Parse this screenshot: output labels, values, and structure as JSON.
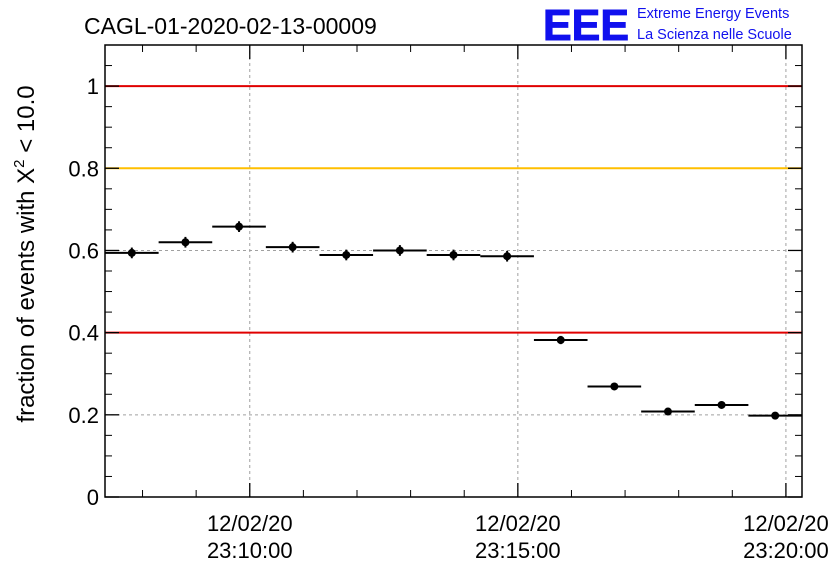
{
  "chart_data": {
    "type": "scatter",
    "title": "CAGL-01-2020-02-13-00009",
    "ylabel_prefix": "fraction of events with ",
    "ylabel_symbol": "Χ",
    "ylabel_superscript": "2",
    "ylabel_suffix": " < 10.0",
    "xlabel": "",
    "ylim": [
      0,
      1.1
    ],
    "xlim_minutes": [
      -2.7,
      10.3
    ],
    "x_tick_labels": [
      {
        "minute": 0,
        "date": "12/02/20",
        "time": "23:10:00"
      },
      {
        "minute": 5,
        "date": "12/02/20",
        "time": "23:15:00"
      },
      {
        "minute": 10,
        "date": "12/02/20",
        "time": "23:20:00"
      }
    ],
    "y_ticks": [
      {
        "value": 0,
        "label": "0"
      },
      {
        "value": 0.2,
        "label": "0.2"
      },
      {
        "value": 0.4,
        "label": "0.4"
      },
      {
        "value": 0.6,
        "label": "0.6"
      },
      {
        "value": 0.8,
        "label": "0.8"
      },
      {
        "value": 1,
        "label": "1"
      }
    ],
    "grid": true,
    "reference_lines": [
      {
        "y": 1.0,
        "color": "#e00000"
      },
      {
        "y": 0.8,
        "color": "#ffbf00"
      },
      {
        "y": 0.4,
        "color": "#e00000"
      }
    ],
    "series": [
      {
        "points": [
          {
            "x0": -2.7,
            "x1": -1.7,
            "x": -2.2,
            "y": 0.594,
            "err": 0.013
          },
          {
            "x0": -1.7,
            "x1": -0.7,
            "x": -1.2,
            "y": 0.62,
            "err": 0.013
          },
          {
            "x0": -0.7,
            "x1": 0.3,
            "x": -0.2,
            "y": 0.658,
            "err": 0.013
          },
          {
            "x0": 0.3,
            "x1": 1.3,
            "x": 0.8,
            "y": 0.608,
            "err": 0.013
          },
          {
            "x0": 1.3,
            "x1": 2.3,
            "x": 1.8,
            "y": 0.589,
            "err": 0.013
          },
          {
            "x0": 2.3,
            "x1": 3.3,
            "x": 2.8,
            "y": 0.6,
            "err": 0.013
          },
          {
            "x0": 3.3,
            "x1": 4.3,
            "x": 3.8,
            "y": 0.589,
            "err": 0.013
          },
          {
            "x0": 4.3,
            "x1": 5.3,
            "x": 4.8,
            "y": 0.586,
            "err": 0.013
          },
          {
            "x0": 5.3,
            "x1": 6.3,
            "x": 5.8,
            "y": 0.382,
            "err": 0.01
          },
          {
            "x0": 6.3,
            "x1": 7.3,
            "x": 6.8,
            "y": 0.269,
            "err": 0.008
          },
          {
            "x0": 7.3,
            "x1": 8.3,
            "x": 7.8,
            "y": 0.208,
            "err": 0.007
          },
          {
            "x0": 8.3,
            "x1": 9.3,
            "x": 8.8,
            "y": 0.224,
            "err": 0.007
          },
          {
            "x0": 9.3,
            "x1": 10.3,
            "x": 9.8,
            "y": 0.198,
            "err": 0.007
          }
        ]
      }
    ]
  },
  "logo": {
    "letters": "EEE",
    "line1": "Extreme Energy Events",
    "line2": "La Scienza nelle Scuole",
    "color": "#1010ee"
  }
}
